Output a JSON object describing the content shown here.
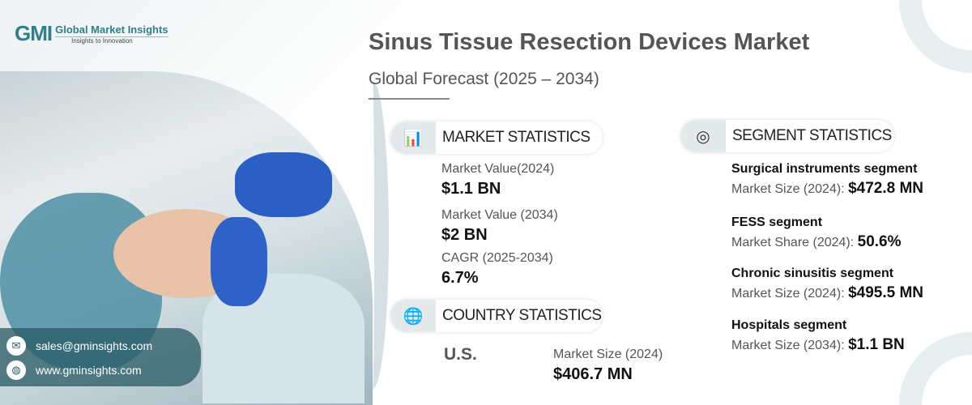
{
  "logo": {
    "mark": "GMI",
    "name": "Global Market Insights",
    "tagline": "Insights to Innovation"
  },
  "title": "Sinus Tissue Resection Devices Market",
  "subtitle": "Global Forecast (2025 – 2034)",
  "market_statistics": {
    "heading": "MARKET STATISTICS",
    "icon": "chart-globe-icon",
    "items": [
      {
        "label": "Market Value(2024)",
        "value": "$1.1 BN"
      },
      {
        "label": "Market Value (2034)",
        "value": "$2 BN"
      },
      {
        "label": "CAGR (2025-2034)",
        "value": "6.7%"
      }
    ]
  },
  "country_statistics": {
    "heading": "COUNTRY STATISTICS",
    "icon": "globe-pin-icon",
    "country": "U.S.",
    "label": "Market Size (2024)",
    "value": "$406.7 MN"
  },
  "segment_statistics": {
    "heading": "SEGMENT STATISTICS",
    "icon": "target-chart-icon",
    "items": [
      {
        "name": "Surgical instruments segment",
        "label": "Market Size (2024):",
        "value": "$472.8 MN"
      },
      {
        "name": "FESS segment",
        "label": "Market Share (2024):",
        "value": "50.6%"
      },
      {
        "name": "Chronic sinusitis segment",
        "label": "Market Size (2024):",
        "value": "$495.5 MN"
      },
      {
        "name": "Hospitals segment",
        "label": "Market Size (2034):",
        "value": "$1.1 BN"
      }
    ]
  },
  "contact": {
    "email": "sales@gminsights.com",
    "website": "www.gminsights.com"
  }
}
